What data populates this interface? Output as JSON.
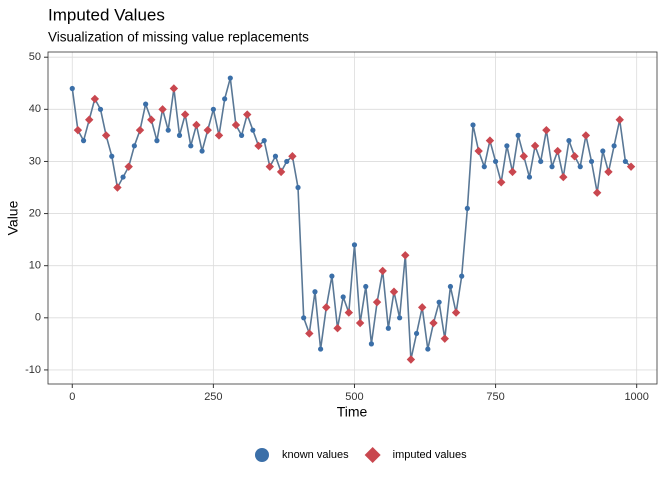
{
  "chart_data": {
    "type": "line-points",
    "title": "Imputed Values",
    "subtitle": "Visualization of missing value replacements",
    "x_label": "Time",
    "y_label": "Value",
    "x": [
      0,
      10,
      20,
      30,
      40,
      50,
      60,
      70,
      80,
      90,
      100,
      110,
      120,
      130,
      140,
      150,
      160,
      170,
      180,
      190,
      200,
      210,
      220,
      230,
      240,
      250,
      260,
      270,
      280,
      290,
      300,
      310,
      320,
      330,
      340,
      350,
      360,
      370,
      380,
      390,
      400,
      410,
      420,
      430,
      440,
      450,
      460,
      470,
      480,
      490,
      500,
      510,
      520,
      530,
      540,
      550,
      560,
      570,
      580,
      590,
      600,
      610,
      620,
      630,
      640,
      650,
      660,
      670,
      680,
      690,
      700,
      710,
      720,
      730,
      740,
      750,
      760,
      770,
      780,
      790,
      800,
      810,
      820,
      830,
      840,
      850,
      860,
      870,
      880,
      890,
      900,
      910,
      920,
      930,
      940,
      950,
      960,
      970,
      980,
      990
    ],
    "series": [
      {
        "name": "known values",
        "color": "#3b6fa8",
        "marker": "circle",
        "values": [
          44,
          null,
          34,
          null,
          null,
          40,
          null,
          31,
          null,
          27,
          null,
          33,
          null,
          41,
          null,
          34,
          null,
          36,
          null,
          35,
          null,
          33,
          null,
          32,
          null,
          40,
          null,
          42,
          46,
          null,
          35,
          null,
          36,
          null,
          34,
          null,
          31,
          null,
          30,
          null,
          25,
          0,
          null,
          5,
          -6,
          null,
          8,
          null,
          4,
          null,
          14,
          null,
          6,
          -5,
          null,
          null,
          -2,
          null,
          0,
          null,
          null,
          -3,
          null,
          -6,
          null,
          3,
          null,
          6,
          null,
          8,
          21,
          37,
          null,
          29,
          null,
          30,
          null,
          33,
          null,
          35,
          null,
          27,
          null,
          30,
          null,
          29,
          null,
          null,
          34,
          null,
          29,
          null,
          30,
          null,
          32,
          null,
          33,
          null,
          30,
          null
        ]
      },
      {
        "name": "imputed values",
        "color": "#c9474f",
        "marker": "diamond",
        "values": [
          null,
          36,
          null,
          38,
          42,
          null,
          35,
          null,
          25,
          null,
          29,
          null,
          36,
          null,
          38,
          null,
          40,
          null,
          44,
          null,
          39,
          null,
          37,
          null,
          36,
          null,
          35,
          null,
          null,
          37,
          null,
          39,
          null,
          33,
          null,
          29,
          null,
          28,
          null,
          31,
          null,
          null,
          -3,
          null,
          null,
          2,
          null,
          -2,
          null,
          1,
          null,
          -1,
          null,
          null,
          3,
          9,
          null,
          5,
          null,
          12,
          -8,
          null,
          2,
          null,
          -1,
          null,
          -4,
          null,
          1,
          null,
          null,
          null,
          32,
          null,
          34,
          null,
          26,
          null,
          28,
          null,
          31,
          null,
          33,
          null,
          36,
          null,
          32,
          27,
          null,
          31,
          null,
          35,
          null,
          24,
          null,
          28,
          null,
          38,
          null,
          29
        ]
      }
    ],
    "line_color": "#5a7896",
    "xlim": [
      -43,
      1036
    ],
    "ylim": [
      -12.7,
      51
    ],
    "xticks": [
      0,
      250,
      500,
      750,
      1000
    ],
    "yticks": [
      -10,
      0,
      10,
      20,
      30,
      40,
      50
    ],
    "grid": true,
    "legend_position": "bottom"
  }
}
